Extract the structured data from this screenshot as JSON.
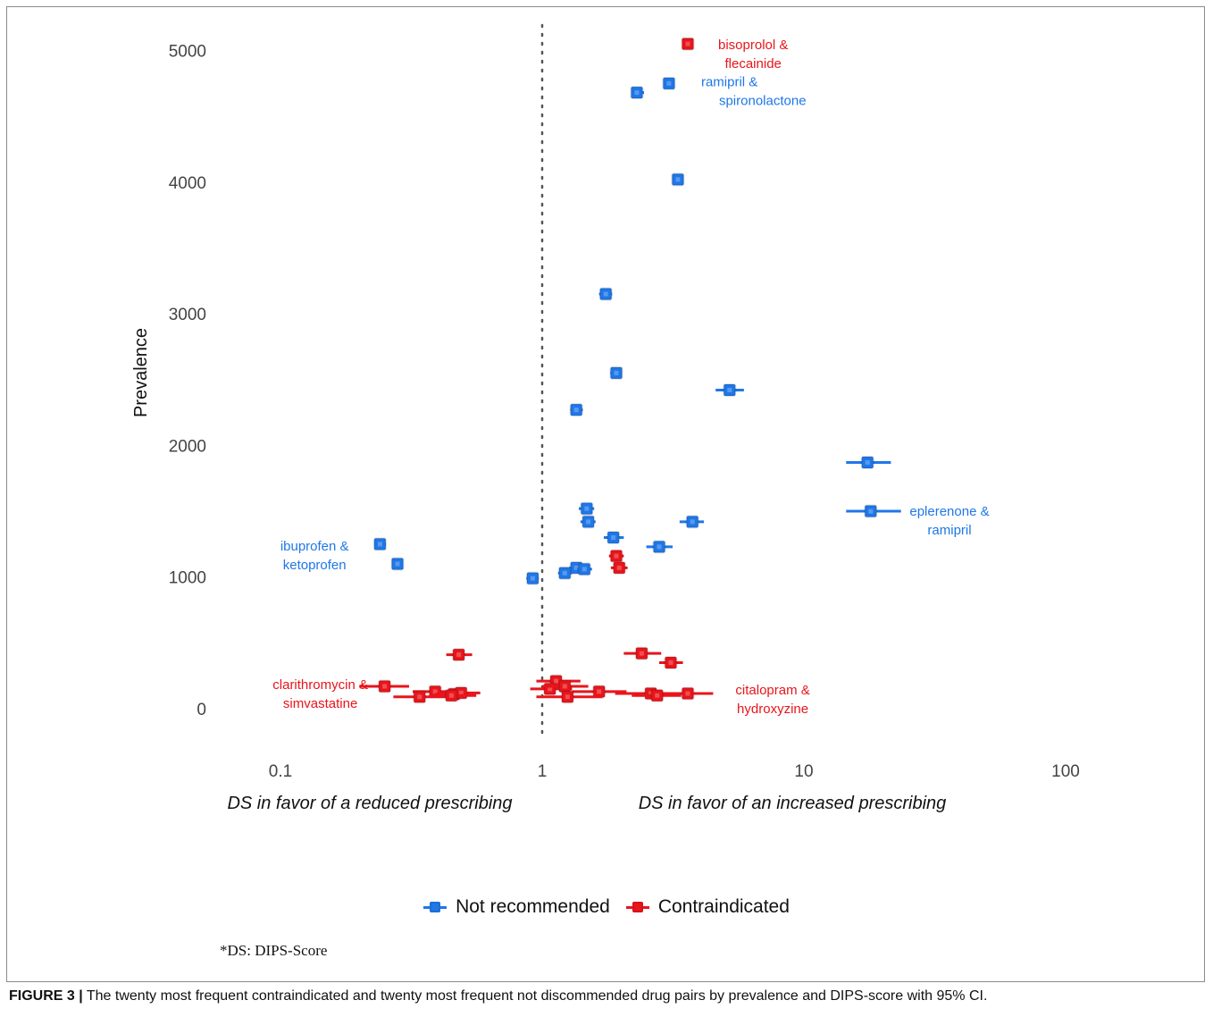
{
  "chart_data": {
    "type": "scatter",
    "x_scale": "log",
    "xlim": [
      0.05,
      200
    ],
    "ylim": [
      -200,
      5200
    ],
    "ylabel": "Prevalence",
    "x_ticks": [
      {
        "value": 0.1,
        "label": "0.1"
      },
      {
        "value": 1,
        "label": "1"
      },
      {
        "value": 10,
        "label": "10"
      },
      {
        "value": 100,
        "label": "100"
      }
    ],
    "y_ticks": [
      {
        "value": 0,
        "label": "0"
      },
      {
        "value": 1000,
        "label": "1000"
      },
      {
        "value": 2000,
        "label": "2000"
      },
      {
        "value": 3000,
        "label": "3000"
      },
      {
        "value": 4000,
        "label": "4000"
      },
      {
        "value": 5000,
        "label": "5000"
      }
    ],
    "reference_line_x": 1,
    "xlabel_left": "DS in favor of a reduced prescribing",
    "xlabel_right": "DS in favor of an increased prescribing",
    "legend_position": "bottom",
    "series": [
      {
        "name": "Not recommended",
        "color": "#1f77e8",
        "points": [
          {
            "x": 2.3,
            "lo": 2.2,
            "hi": 2.45,
            "y": 4680
          },
          {
            "x": 3.05,
            "lo": 2.9,
            "hi": 3.2,
            "y": 4750
          },
          {
            "x": 3.3,
            "lo": 3.15,
            "hi": 3.45,
            "y": 4020
          },
          {
            "x": 1.75,
            "lo": 1.65,
            "hi": 1.85,
            "y": 3150
          },
          {
            "x": 1.92,
            "lo": 1.82,
            "hi": 2.02,
            "y": 2550
          },
          {
            "x": 1.35,
            "lo": 1.28,
            "hi": 1.43,
            "y": 2270
          },
          {
            "x": 5.2,
            "lo": 4.6,
            "hi": 5.9,
            "y": 2420
          },
          {
            "x": 17.5,
            "lo": 14.5,
            "hi": 21.5,
            "y": 1870
          },
          {
            "x": 18,
            "lo": 14.5,
            "hi": 23.5,
            "y": 1500
          },
          {
            "x": 1.48,
            "lo": 1.38,
            "hi": 1.58,
            "y": 1520
          },
          {
            "x": 1.5,
            "lo": 1.4,
            "hi": 1.6,
            "y": 1420
          },
          {
            "x": 3.75,
            "lo": 3.35,
            "hi": 4.15,
            "y": 1420
          },
          {
            "x": 1.87,
            "lo": 1.72,
            "hi": 2.05,
            "y": 1300
          },
          {
            "x": 2.8,
            "lo": 2.5,
            "hi": 3.15,
            "y": 1230
          },
          {
            "x": 0.24,
            "lo": 0.228,
            "hi": 0.253,
            "y": 1250
          },
          {
            "x": 0.28,
            "lo": 0.268,
            "hi": 0.292,
            "y": 1100
          },
          {
            "x": 1.35,
            "lo": 1.27,
            "hi": 1.43,
            "y": 1070
          },
          {
            "x": 1.45,
            "lo": 1.36,
            "hi": 1.55,
            "y": 1060
          },
          {
            "x": 1.22,
            "lo": 1.15,
            "hi": 1.3,
            "y": 1030
          },
          {
            "x": 0.92,
            "lo": 0.87,
            "hi": 0.97,
            "y": 990
          }
        ]
      },
      {
        "name": "Contraindicated",
        "color": "#e8151b",
        "points": [
          {
            "x": 3.6,
            "lo": 3.48,
            "hi": 3.72,
            "y": 5050
          },
          {
            "x": 1.92,
            "lo": 1.8,
            "hi": 2.05,
            "y": 1160
          },
          {
            "x": 1.97,
            "lo": 1.83,
            "hi": 2.12,
            "y": 1070
          },
          {
            "x": 0.48,
            "lo": 0.43,
            "hi": 0.54,
            "y": 410
          },
          {
            "x": 2.4,
            "lo": 2.05,
            "hi": 2.85,
            "y": 420
          },
          {
            "x": 3.1,
            "lo": 2.8,
            "hi": 3.45,
            "y": 350
          },
          {
            "x": 1.13,
            "lo": 0.95,
            "hi": 1.4,
            "y": 210
          },
          {
            "x": 1.07,
            "lo": 0.9,
            "hi": 1.3,
            "y": 150
          },
          {
            "x": 1.22,
            "lo": 1.0,
            "hi": 1.5,
            "y": 170
          },
          {
            "x": 0.25,
            "lo": 0.2,
            "hi": 0.31,
            "y": 170
          },
          {
            "x": 0.39,
            "lo": 0.32,
            "hi": 0.47,
            "y": 130
          },
          {
            "x": 0.46,
            "lo": 0.39,
            "hi": 0.55,
            "y": 110
          },
          {
            "x": 0.49,
            "lo": 0.41,
            "hi": 0.58,
            "y": 120
          },
          {
            "x": 1.65,
            "lo": 1.3,
            "hi": 2.1,
            "y": 130
          },
          {
            "x": 2.6,
            "lo": 1.9,
            "hi": 3.6,
            "y": 115
          },
          {
            "x": 3.6,
            "lo": 2.9,
            "hi": 4.5,
            "y": 115
          },
          {
            "x": 2.75,
            "lo": 2.2,
            "hi": 3.4,
            "y": 100
          },
          {
            "x": 1.25,
            "lo": 0.95,
            "hi": 1.7,
            "y": 90
          },
          {
            "x": 0.34,
            "lo": 0.27,
            "hi": 0.43,
            "y": 90
          },
          {
            "x": 0.45,
            "lo": 0.37,
            "hi": 0.56,
            "y": 100
          }
        ]
      }
    ],
    "annotations": [
      {
        "series": "Contraindicated",
        "lines": [
          "bisoprolol &",
          "flecainide"
        ],
        "x": 6.4,
        "y": 5010,
        "anchor": "middle"
      },
      {
        "series": "Not recommended",
        "lines": [
          "ramipril &",
          "spironolactone"
        ],
        "x": 4.05,
        "y": 4730,
        "anchor": "start"
      },
      {
        "series": "Not recommended",
        "lines": [
          "eplerenone &",
          "ramipril"
        ],
        "x": 36,
        "y": 1465,
        "anchor": "middle"
      },
      {
        "series": "Not recommended",
        "lines": [
          "ibuprofen &",
          "ketoprofen"
        ],
        "x": 0.135,
        "y": 1200,
        "anchor": "middle"
      },
      {
        "series": "Contraindicated",
        "lines": [
          "clarithromycin &",
          "simvastatine"
        ],
        "x": 0.142,
        "y": 150,
        "anchor": "middle"
      },
      {
        "series": "Contraindicated",
        "lines": [
          "citalopram &",
          "hydroxyzine"
        ],
        "x": 7.6,
        "y": 110,
        "anchor": "middle"
      }
    ]
  },
  "legend": {
    "items": [
      {
        "label": "Not recommended",
        "color": "#1f77e8"
      },
      {
        "label": "Contraindicated",
        "color": "#e8151b"
      }
    ]
  },
  "footnote": "*DS: DIPS-Score",
  "caption": {
    "label": "FIGURE 3 |",
    "text": " The twenty most frequent contraindicated and twenty most frequent not discommended drug pairs by prevalence and DIPS-score with 95% CI."
  }
}
